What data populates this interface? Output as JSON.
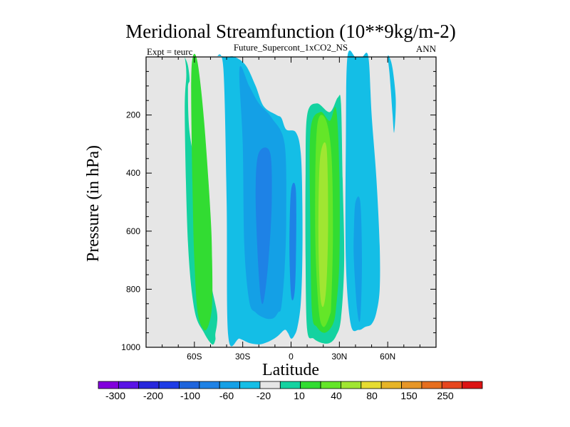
{
  "chart_data": {
    "type": "heatmap",
    "title": "Meridional Streamfunction (10**9kg/m-2)",
    "subtitle_left": "Expt = teurc",
    "subtitle_center": "Future_Supercont_1xCO2_NS",
    "subtitle_right": "ANN",
    "xlabel": "Latitude",
    "ylabel": "Pressure (in hPa)",
    "xlim": [
      -90,
      90
    ],
    "ylim": [
      1000,
      0
    ],
    "xticks": [
      -60,
      -30,
      0,
      30,
      60
    ],
    "xtick_labels": [
      "60S",
      "30S",
      "0",
      "30N",
      "60N"
    ],
    "yticks": [
      200,
      400,
      600,
      800,
      1000
    ],
    "ytick_labels": [
      "200",
      "400",
      "600",
      "800",
      "1000"
    ],
    "background_color": "#e6e6e6",
    "colorbar": {
      "labels": [
        "-300",
        "-200",
        "-100",
        "-60",
        "-20",
        "10",
        "40",
        "80",
        "150",
        "250"
      ],
      "colors": [
        "#8200dc",
        "#5a14e6",
        "#2828dc",
        "#1e3ce6",
        "#1e64dc",
        "#1e82e6",
        "#14a0e6",
        "#14bee6",
        "#e6e6e6",
        "#14d2a0",
        "#32dc32",
        "#64e628",
        "#a0e632",
        "#e6dc32",
        "#e6b428",
        "#e69628",
        "#e66e1e",
        "#e6461e",
        "#dc1414"
      ]
    },
    "contours": [
      {
        "level_color": "#14d2a0",
        "description": "southern positive cell outer",
        "lat": [
          -66,
          -64,
          -63,
          -64,
          -63,
          -58,
          -56,
          -52,
          -49,
          -46,
          -46,
          -47,
          -47,
          -49,
          -54,
          -60,
          -64,
          -66,
          -65,
          -66
        ],
        "p": [
          0,
          30,
          80,
          110,
          260,
          420,
          580,
          700,
          800,
          880,
          920,
          955,
          975,
          990,
          950,
          870,
          640,
          200,
          60,
          0
        ]
      },
      {
        "level_color": "#32dc32",
        "description": "southern positive cell core",
        "lat": [
          -61,
          -58,
          -54,
          -50,
          -49,
          -49,
          -51,
          -54,
          -58,
          -60,
          -61,
          -62
        ],
        "p": [
          0,
          20,
          220,
          540,
          700,
          850,
          920,
          940,
          880,
          700,
          500,
          120
        ]
      },
      {
        "level_color": "#14bee6",
        "description": "southern negative cell outer",
        "lat": [
          -46,
          -40,
          -35,
          -28,
          -22,
          -17,
          -9,
          -6,
          -3,
          3,
          6,
          7,
          7,
          6,
          4,
          2,
          0,
          -2,
          -4,
          -8,
          -12,
          -16,
          -20,
          -26,
          -32,
          -39,
          -40,
          -42
        ],
        "p": [
          0,
          0,
          0,
          30,
          100,
          170,
          200,
          210,
          250,
          260,
          330,
          500,
          700,
          850,
          930,
          960,
          970,
          950,
          940,
          960,
          975,
          985,
          990,
          985,
          970,
          960,
          500,
          40
        ]
      },
      {
        "level_color": "#14a0e6",
        "description": "southern negative cell inner",
        "lat": [
          -32,
          -26,
          -20,
          -12,
          -4,
          -3,
          -4,
          -6,
          -8,
          -11,
          -16,
          -22,
          -26,
          -29,
          -30
        ],
        "p": [
          40,
          100,
          160,
          210,
          300,
          550,
          730,
          860,
          880,
          900,
          900,
          880,
          840,
          650,
          300
        ]
      },
      {
        "level_color": "#1e82e6",
        "description": "southern negative core",
        "lat": [
          -20,
          -13,
          -12,
          -14,
          -17,
          -19,
          -21,
          -22
        ],
        "p": [
          330,
          330,
          500,
          700,
          840,
          820,
          650,
          450
        ]
      },
      {
        "level_color": "#1e82e6",
        "description": "equatorial negative core",
        "lat": [
          0,
          3,
          3,
          2,
          0,
          -1
        ],
        "p": [
          460,
          460,
          700,
          820,
          820,
          650
        ]
      },
      {
        "level_color": "#14d2a0",
        "description": "northern positive cell outer",
        "lat": [
          10,
          16,
          24,
          29,
          31,
          32,
          33,
          31,
          28,
          24,
          19,
          14,
          10,
          9,
          9
        ],
        "p": [
          200,
          160,
          190,
          140,
          160,
          420,
          700,
          900,
          960,
          985,
          985,
          970,
          940,
          700,
          400
        ]
      },
      {
        "level_color": "#32dc32",
        "description": "northern positive cell",
        "lat": [
          12,
          18,
          24,
          28,
          30,
          30,
          28,
          26,
          21,
          16,
          13,
          12
        ],
        "p": [
          260,
          190,
          220,
          180,
          400,
          700,
          860,
          920,
          950,
          930,
          880,
          600
        ]
      },
      {
        "level_color": "#64e628",
        "description": "northern positive inner",
        "lat": [
          16,
          21,
          25,
          26,
          25,
          24,
          20,
          17,
          15
        ],
        "p": [
          250,
          210,
          330,
          600,
          840,
          890,
          930,
          860,
          600
        ]
      },
      {
        "level_color": "#a0e632",
        "description": "northern positive core",
        "lat": [
          18,
          22,
          23,
          22,
          20,
          18,
          17
        ],
        "p": [
          350,
          310,
          560,
          780,
          860,
          810,
          600
        ]
      },
      {
        "level_color": "#14bee6",
        "description": "northern negative cell outer",
        "lat": [
          35,
          40,
          44,
          48,
          50,
          53,
          55,
          55,
          53,
          50,
          46,
          42,
          37,
          34,
          34
        ],
        "p": [
          0,
          0,
          0,
          0,
          200,
          420,
          650,
          800,
          880,
          920,
          930,
          940,
          920,
          700,
          300
        ]
      },
      {
        "level_color": "#14a0e6",
        "description": "northern negative core",
        "lat": [
          40,
          43,
          44,
          43,
          41,
          39,
          39
        ],
        "p": [
          500,
          500,
          700,
          900,
          870,
          700,
          600
        ]
      },
      {
        "level_color": "#14bee6",
        "description": "high latitude filament",
        "lat": [
          60,
          61,
          63,
          65,
          64,
          63,
          62,
          61
        ],
        "p": [
          0,
          0,
          40,
          150,
          260,
          200,
          120,
          50
        ]
      }
    ]
  }
}
